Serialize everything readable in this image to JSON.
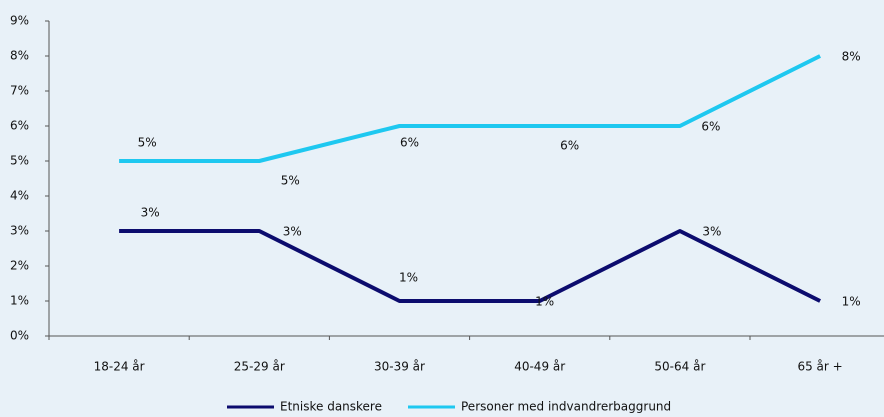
{
  "chart_data": {
    "type": "line",
    "categories": [
      "18-24 år",
      "25-29 år",
      "30-39 år",
      "40-49 år",
      "50-64 år",
      "65 år +"
    ],
    "series": [
      {
        "name": "Etniske danskere",
        "color": "#0c0c6e",
        "values": [
          3,
          3,
          1,
          1,
          3,
          1
        ],
        "value_labels": [
          "3%",
          "3%",
          "1%",
          "1%",
          "3%",
          "1%"
        ]
      },
      {
        "name": "Personer med indvandrerbaggrund",
        "color": "#1ec8f0",
        "values": [
          5,
          5,
          6,
          6,
          6,
          8
        ],
        "value_labels": [
          "5%",
          "5%",
          "6%",
          "6%",
          "6%",
          "8%"
        ]
      }
    ],
    "ylim": [
      0,
      9
    ],
    "yticks": [
      {
        "value": 0,
        "label": "0%"
      },
      {
        "value": 1,
        "label": "1%"
      },
      {
        "value": 2,
        "label": "2%"
      },
      {
        "value": 3,
        "label": "3%"
      },
      {
        "value": 4,
        "label": "4%"
      },
      {
        "value": 5,
        "label": "5%"
      },
      {
        "value": 6,
        "label": "6%"
      },
      {
        "value": 7,
        "label": "7%"
      },
      {
        "value": 8,
        "label": "8%"
      },
      {
        "value": 9,
        "label": "9%"
      }
    ],
    "legend": "bottom"
  }
}
